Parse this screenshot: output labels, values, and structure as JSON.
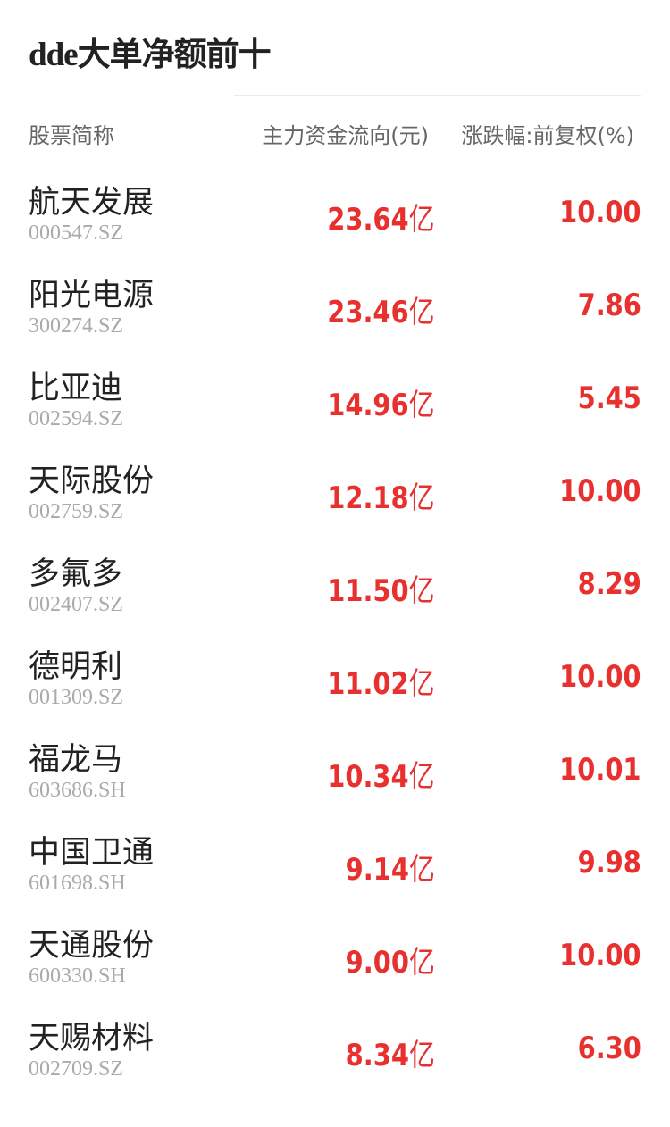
{
  "title": "dde大单净额前十",
  "headers": {
    "name": "股票简称",
    "flow": "主力资金流向(元)",
    "change": "涨跌幅:前复权(%)"
  },
  "accent_color": "#e8302e",
  "unit": "亿",
  "rows": [
    {
      "name": "航天发展",
      "code": "000547.SZ",
      "flow": "23.64",
      "change": "10.00"
    },
    {
      "name": "阳光电源",
      "code": "300274.SZ",
      "flow": "23.46",
      "change": "7.86"
    },
    {
      "name": "比亚迪",
      "code": "002594.SZ",
      "flow": "14.96",
      "change": "5.45"
    },
    {
      "name": "天际股份",
      "code": "002759.SZ",
      "flow": "12.18",
      "change": "10.00"
    },
    {
      "name": "多氟多",
      "code": "002407.SZ",
      "flow": "11.50",
      "change": "8.29"
    },
    {
      "name": "德明利",
      "code": "001309.SZ",
      "flow": "11.02",
      "change": "10.00"
    },
    {
      "name": "福龙马",
      "code": "603686.SH",
      "flow": "10.34",
      "change": "10.01"
    },
    {
      "name": "中国卫通",
      "code": "601698.SH",
      "flow": "9.14",
      "change": "9.98"
    },
    {
      "name": "天通股份",
      "code": "600330.SH",
      "flow": "9.00",
      "change": "10.00"
    },
    {
      "name": "天赐材料",
      "code": "002709.SZ",
      "flow": "8.34",
      "change": "6.30"
    }
  ]
}
